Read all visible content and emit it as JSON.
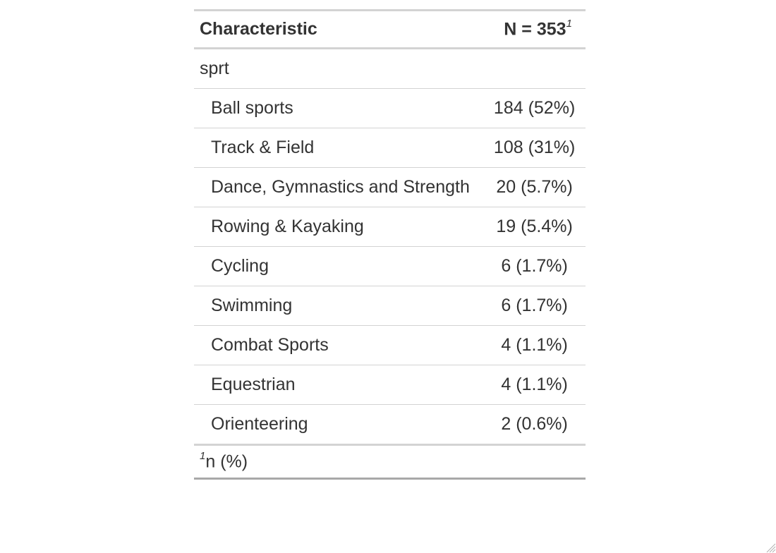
{
  "table": {
    "header": {
      "characteristic": "Characteristic",
      "n_label": "N = 353",
      "n_footnote_mark": "1"
    },
    "variable": "sprt",
    "rows": [
      {
        "label": "Ball sports",
        "value": "184 (52%)"
      },
      {
        "label": "Track & Field",
        "value": "108 (31%)"
      },
      {
        "label": "Dance, Gymnastics and Strength",
        "value": "20 (5.7%)"
      },
      {
        "label": "Rowing & Kayaking",
        "value": "19 (5.4%)"
      },
      {
        "label": "Cycling",
        "value": "6 (1.7%)"
      },
      {
        "label": "Swimming",
        "value": "6 (1.7%)"
      },
      {
        "label": "Combat Sports",
        "value": "4 (1.1%)"
      },
      {
        "label": "Equestrian",
        "value": "4 (1.1%)"
      },
      {
        "label": "Orienteering",
        "value": "2 (0.6%)"
      }
    ],
    "footnote": {
      "mark": "1",
      "text": "n (%)"
    }
  },
  "colors": {
    "text": "#333333",
    "rule_light": "#d3d3d3",
    "rule_dark": "#a8a8a8"
  }
}
